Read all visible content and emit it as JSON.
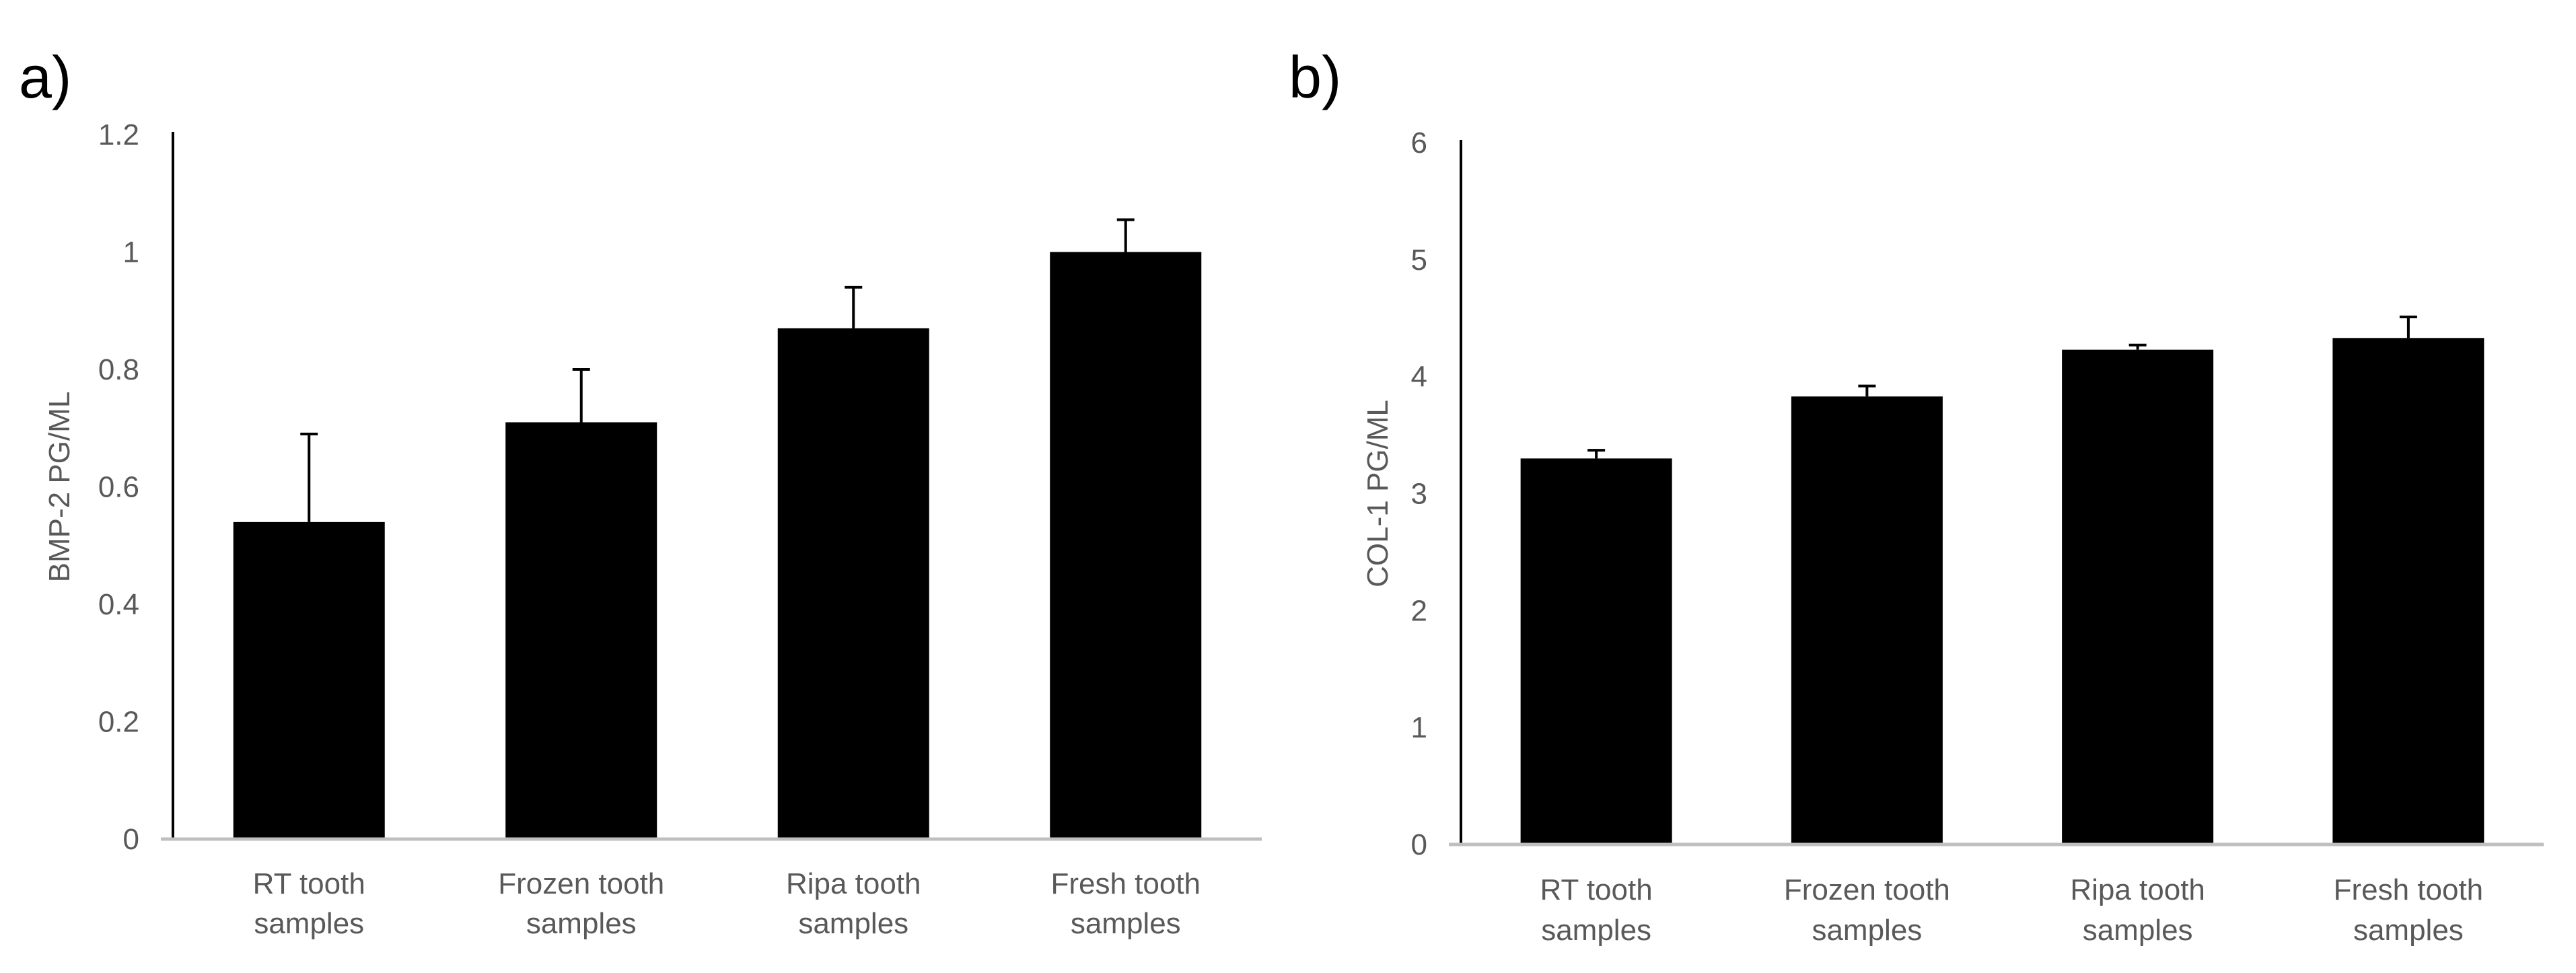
{
  "colors": {
    "bar": "#000000",
    "axis": "#bfbfbf",
    "yaxis": "#000000",
    "text": "#595959"
  },
  "chart_data": [
    {
      "panel": "a)",
      "type": "bar",
      "categories": [
        [
          "RT tooth",
          "samples"
        ],
        [
          "Frozen  tooth",
          "samples"
        ],
        [
          "Ripa tooth",
          "samples"
        ],
        [
          "Fresh  tooth",
          "samples"
        ]
      ],
      "values": [
        0.54,
        0.71,
        0.87,
        1.0
      ],
      "errors": [
        0.15,
        0.09,
        0.07,
        0.055
      ],
      "ylabel": "BMP-2 PG/ML",
      "ylim": [
        0,
        1.2
      ],
      "yticks": [
        "0",
        "0.2",
        "0.4",
        "0.6",
        "0.8",
        "1",
        "1.2"
      ],
      "ytick_values": [
        0,
        0.2,
        0.4,
        0.6,
        0.8,
        1.0,
        1.2
      ]
    },
    {
      "panel": "b)",
      "type": "bar",
      "categories": [
        [
          "RT tooth",
          "samples"
        ],
        [
          "Frozen  tooth",
          "samples"
        ],
        [
          "Ripa tooth",
          "samples"
        ],
        [
          "Fresh  tooth",
          "samples"
        ]
      ],
      "values": [
        3.3,
        3.83,
        4.23,
        4.33
      ],
      "errors": [
        0.07,
        0.09,
        0.04,
        0.18
      ],
      "ylabel": "COL-1 PG/ML",
      "ylim": [
        0,
        6
      ],
      "yticks": [
        "0",
        "1",
        "2",
        "3",
        "4",
        "5",
        "6"
      ],
      "ytick_values": [
        0,
        1,
        2,
        3,
        4,
        5,
        6
      ]
    }
  ]
}
